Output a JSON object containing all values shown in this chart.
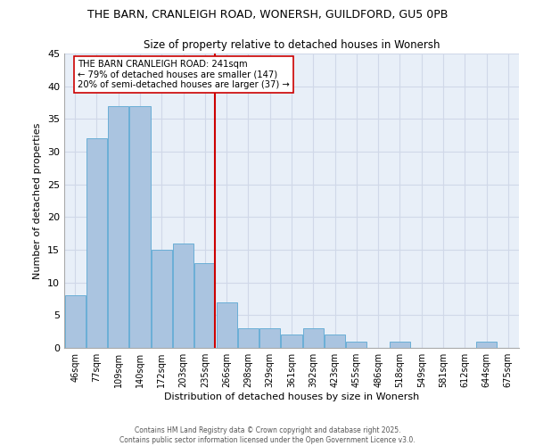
{
  "title_line1": "THE BARN, CRANLEIGH ROAD, WONERSH, GUILDFORD, GU5 0PB",
  "title_line2": "Size of property relative to detached houses in Wonersh",
  "xlabel": "Distribution of detached houses by size in Wonersh",
  "ylabel": "Number of detached properties",
  "categories": [
    "46sqm",
    "77sqm",
    "109sqm",
    "140sqm",
    "172sqm",
    "203sqm",
    "235sqm",
    "266sqm",
    "298sqm",
    "329sqm",
    "361sqm",
    "392sqm",
    "423sqm",
    "455sqm",
    "486sqm",
    "518sqm",
    "549sqm",
    "581sqm",
    "612sqm",
    "644sqm",
    "675sqm"
  ],
  "values": [
    8,
    32,
    37,
    37,
    15,
    16,
    13,
    7,
    3,
    3,
    2,
    3,
    2,
    1,
    0,
    1,
    0,
    0,
    0,
    1,
    0
  ],
  "bar_color": "#aac4e0",
  "bar_edge_color": "#6aaed6",
  "grid_color": "#d0d8e8",
  "background_color": "#e8eff8",
  "vline_color": "#cc0000",
  "annotation_text": "THE BARN CRANLEIGH ROAD: 241sqm\n← 79% of detached houses are smaller (147)\n20% of semi-detached houses are larger (37) →",
  "annotation_box_facecolor": "#ffffff",
  "annotation_box_edgecolor": "#cc0000",
  "annotation_fontsize": 7.2,
  "footer_text": "Contains HM Land Registry data © Crown copyright and database right 2025.\nContains public sector information licensed under the Open Government Licence v3.0.",
  "ylim": [
    0,
    45
  ],
  "yticks": [
    0,
    5,
    10,
    15,
    20,
    25,
    30,
    35,
    40,
    45
  ]
}
